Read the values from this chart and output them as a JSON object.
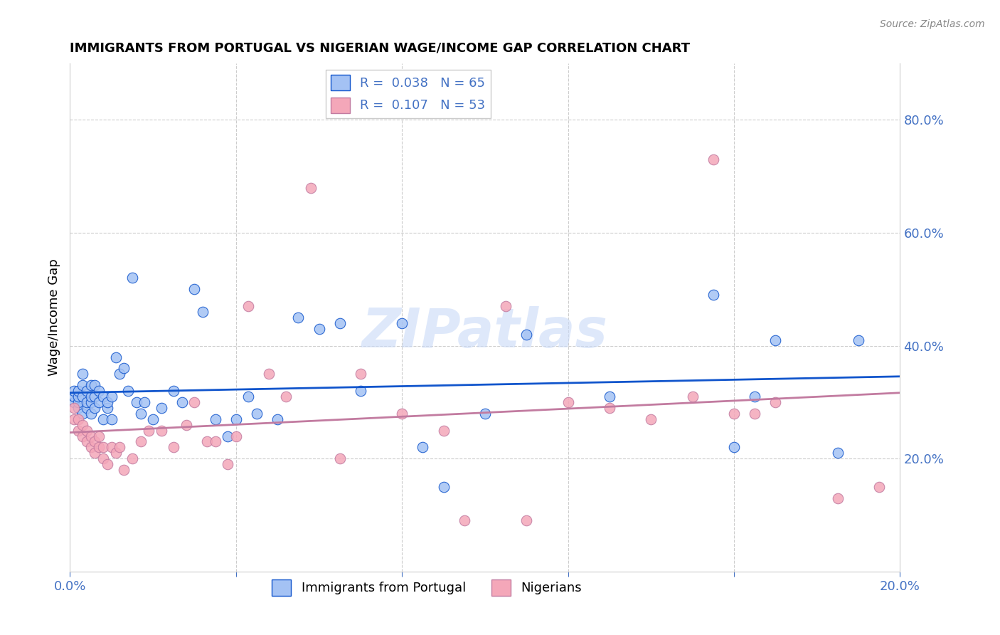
{
  "title": "IMMIGRANTS FROM PORTUGAL VS NIGERIAN WAGE/INCOME GAP CORRELATION CHART",
  "source": "Source: ZipAtlas.com",
  "ylabel": "Wage/Income Gap",
  "xlim": [
    0.0,
    0.2
  ],
  "ylim": [
    0.0,
    0.9
  ],
  "yticks": [
    0.2,
    0.4,
    0.6,
    0.8
  ],
  "ytick_labels": [
    "20.0%",
    "40.0%",
    "60.0%",
    "80.0%"
  ],
  "color_portugal": "#a4c2f4",
  "color_nigeria": "#f4a7b9",
  "color_portugal_line": "#1155cc",
  "color_nigeria_line": "#c27ba0",
  "legend_r_portugal": "R =  0.038",
  "legend_n_portugal": "N = 65",
  "legend_r_nigeria": "R =  0.107",
  "legend_n_nigeria": "N = 53",
  "watermark": "ZIPatlas",
  "portugal_x": [
    0.001,
    0.001,
    0.001,
    0.002,
    0.002,
    0.002,
    0.002,
    0.003,
    0.003,
    0.003,
    0.003,
    0.004,
    0.004,
    0.004,
    0.005,
    0.005,
    0.005,
    0.005,
    0.006,
    0.006,
    0.006,
    0.007,
    0.007,
    0.008,
    0.008,
    0.009,
    0.009,
    0.01,
    0.01,
    0.011,
    0.012,
    0.013,
    0.014,
    0.015,
    0.016,
    0.017,
    0.018,
    0.02,
    0.022,
    0.025,
    0.027,
    0.03,
    0.032,
    0.035,
    0.038,
    0.04,
    0.043,
    0.045,
    0.05,
    0.055,
    0.06,
    0.065,
    0.07,
    0.08,
    0.085,
    0.09,
    0.1,
    0.11,
    0.13,
    0.155,
    0.16,
    0.165,
    0.17,
    0.185,
    0.19
  ],
  "portugal_y": [
    0.3,
    0.31,
    0.32,
    0.29,
    0.3,
    0.31,
    0.32,
    0.28,
    0.31,
    0.33,
    0.35,
    0.29,
    0.3,
    0.32,
    0.28,
    0.3,
    0.31,
    0.33,
    0.29,
    0.31,
    0.33,
    0.3,
    0.32,
    0.27,
    0.31,
    0.29,
    0.3,
    0.27,
    0.31,
    0.38,
    0.35,
    0.36,
    0.32,
    0.52,
    0.3,
    0.28,
    0.3,
    0.27,
    0.29,
    0.32,
    0.3,
    0.5,
    0.46,
    0.27,
    0.24,
    0.27,
    0.31,
    0.28,
    0.27,
    0.45,
    0.43,
    0.44,
    0.32,
    0.44,
    0.22,
    0.15,
    0.28,
    0.42,
    0.31,
    0.49,
    0.22,
    0.31,
    0.41,
    0.21,
    0.41
  ],
  "nigeria_x": [
    0.001,
    0.001,
    0.002,
    0.002,
    0.003,
    0.003,
    0.004,
    0.004,
    0.005,
    0.005,
    0.006,
    0.006,
    0.007,
    0.007,
    0.008,
    0.008,
    0.009,
    0.01,
    0.011,
    0.012,
    0.013,
    0.015,
    0.017,
    0.019,
    0.022,
    0.025,
    0.028,
    0.03,
    0.033,
    0.035,
    0.038,
    0.04,
    0.043,
    0.048,
    0.052,
    0.058,
    0.065,
    0.07,
    0.08,
    0.09,
    0.095,
    0.105,
    0.11,
    0.12,
    0.13,
    0.14,
    0.15,
    0.155,
    0.16,
    0.165,
    0.17,
    0.185,
    0.195
  ],
  "nigeria_y": [
    0.27,
    0.29,
    0.25,
    0.27,
    0.24,
    0.26,
    0.23,
    0.25,
    0.22,
    0.24,
    0.21,
    0.23,
    0.22,
    0.24,
    0.2,
    0.22,
    0.19,
    0.22,
    0.21,
    0.22,
    0.18,
    0.2,
    0.23,
    0.25,
    0.25,
    0.22,
    0.26,
    0.3,
    0.23,
    0.23,
    0.19,
    0.24,
    0.47,
    0.35,
    0.31,
    0.68,
    0.2,
    0.35,
    0.28,
    0.25,
    0.09,
    0.47,
    0.09,
    0.3,
    0.29,
    0.27,
    0.31,
    0.73,
    0.28,
    0.28,
    0.3,
    0.13,
    0.15
  ]
}
